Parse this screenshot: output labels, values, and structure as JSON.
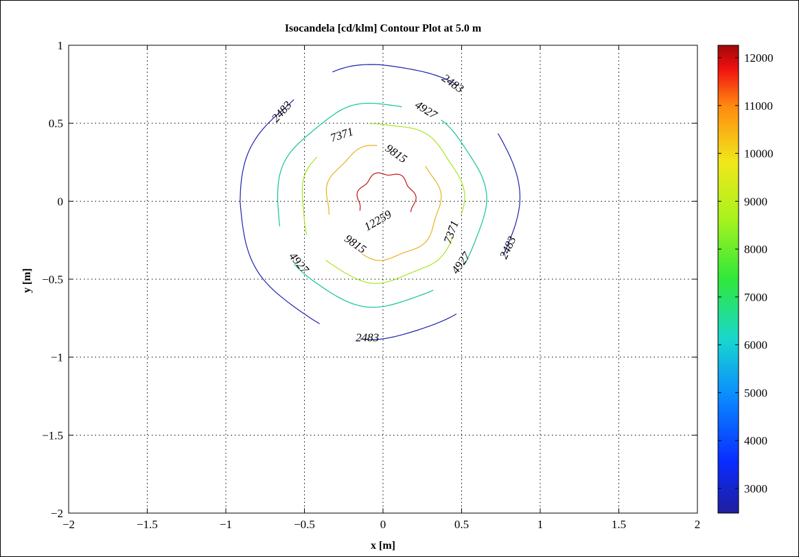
{
  "chart_data": {
    "type": "contour",
    "title": "Isocandela [cd/klm] Contour Plot at 5.0 m",
    "xlabel": "x [m]",
    "ylabel": "y [m]",
    "xlim": [
      -2,
      2
    ],
    "ylim": [
      -2,
      1
    ],
    "x_ticks": [
      -2,
      -1.5,
      -1,
      -0.5,
      0,
      0.5,
      1,
      1.5,
      2
    ],
    "x_tick_labels": [
      "−2",
      "−1.5",
      "−1",
      "−0.5",
      "0",
      "0.5",
      "1",
      "1.5",
      "2"
    ],
    "y_ticks": [
      -2,
      -1.5,
      -1,
      -0.5,
      0,
      0.5,
      1
    ],
    "y_tick_labels": [
      "−2",
      "−1.5",
      "−1",
      "−0.5",
      "0",
      "0.5",
      "1"
    ],
    "grid": true,
    "colorbar": {
      "colormap": "jet",
      "range": [
        2483,
        12259
      ],
      "ticks": [
        3000,
        4000,
        5000,
        6000,
        7000,
        8000,
        9000,
        10000,
        11000,
        12000
      ],
      "tick_labels": [
        "3000",
        "4000",
        "5000",
        "6000",
        "7000",
        "8000",
        "9000",
        "10000",
        "11000",
        "12000"
      ]
    },
    "contours": [
      {
        "level": 2483,
        "color": "#1f1fb0",
        "radius_by_angle": [
          [
            0,
            0.88
          ],
          [
            45,
            0.88
          ],
          [
            90,
            0.88
          ],
          [
            135,
            0.86
          ],
          [
            180,
            0.9
          ],
          [
            225,
            0.88
          ],
          [
            270,
            0.88
          ],
          [
            315,
            0.86
          ],
          [
            360,
            0.88
          ]
        ],
        "center": [
          -0.02,
          0.0
        ],
        "gaps": [
          [
            30,
            55
          ],
          [
            110,
            130
          ],
          [
            245,
            262
          ],
          [
            305,
            335
          ]
        ],
        "labels": [
          {
            "text": "2483",
            "x": 0.44,
            "y": 0.75,
            "angle": 35
          },
          {
            "text": "2483",
            "x": -0.64,
            "y": 0.57,
            "angle": -48
          },
          {
            "text": "2483",
            "x": 0.8,
            "y": -0.3,
            "angle": -65
          },
          {
            "text": "2483",
            "x": -0.1,
            "y": -0.88,
            "angle": 0
          }
        ]
      },
      {
        "level": 4927,
        "color": "#12c29a",
        "radius_by_angle": [
          [
            0,
            0.66
          ],
          [
            60,
            0.63
          ],
          [
            120,
            0.63
          ],
          [
            180,
            0.67
          ],
          [
            240,
            0.68
          ],
          [
            300,
            0.66
          ],
          [
            360,
            0.66
          ]
        ],
        "center": [
          -0.01,
          0.0
        ],
        "gaps": [
          [
            55,
            78
          ],
          [
            195,
            215
          ],
          [
            300,
            322
          ]
        ],
        "labels": [
          {
            "text": "4927",
            "x": 0.27,
            "y": 0.58,
            "angle": 32
          },
          {
            "text": "4927",
            "x": -0.54,
            "y": -0.4,
            "angle": 50
          },
          {
            "text": "4927",
            "x": 0.5,
            "y": -0.4,
            "angle": -55
          }
        ]
      },
      {
        "level": 7371,
        "color": "#a8e61e",
        "radius_by_angle": [
          [
            0,
            0.51
          ],
          [
            60,
            0.5
          ],
          [
            120,
            0.5
          ],
          [
            180,
            0.52
          ],
          [
            240,
            0.53
          ],
          [
            300,
            0.5
          ],
          [
            360,
            0.51
          ]
        ],
        "center": [
          0.0,
          0.0
        ],
        "gaps": [
          [
            100,
            145
          ],
          [
            205,
            225
          ],
          [
            335,
            350
          ]
        ],
        "labels": [
          {
            "text": "7371",
            "x": -0.26,
            "y": 0.42,
            "angle": -18
          },
          {
            "text": "7371",
            "x": 0.44,
            "y": -0.2,
            "angle": -70
          }
        ]
      },
      {
        "level": 9815,
        "color": "#e8b11c",
        "radius_by_angle": [
          [
            0,
            0.36
          ],
          [
            90,
            0.36
          ],
          [
            180,
            0.36
          ],
          [
            270,
            0.37
          ],
          [
            360,
            0.36
          ]
        ],
        "center": [
          0.0,
          0.0
        ],
        "gaps": [
          [
            40,
            95
          ],
          [
            195,
            248
          ]
        ],
        "labels": [
          {
            "text": "9815",
            "x": 0.08,
            "y": 0.3,
            "angle": 35
          },
          {
            "text": "9815",
            "x": -0.18,
            "y": -0.28,
            "angle": 35
          }
        ]
      },
      {
        "level": 12259,
        "color": "#c01515",
        "radius_by_angle": [
          [
            0,
            0.18
          ],
          [
            90,
            0.18
          ],
          [
            180,
            0.18
          ],
          [
            270,
            0.18
          ],
          [
            360,
            0.18
          ]
        ],
        "center": [
          0.02,
          0.0
        ],
        "gaps": [
          [
            200,
            335
          ]
        ],
        "labels": [
          {
            "text": "12259",
            "x": -0.03,
            "y": -0.13,
            "angle": -30
          }
        ]
      }
    ]
  }
}
